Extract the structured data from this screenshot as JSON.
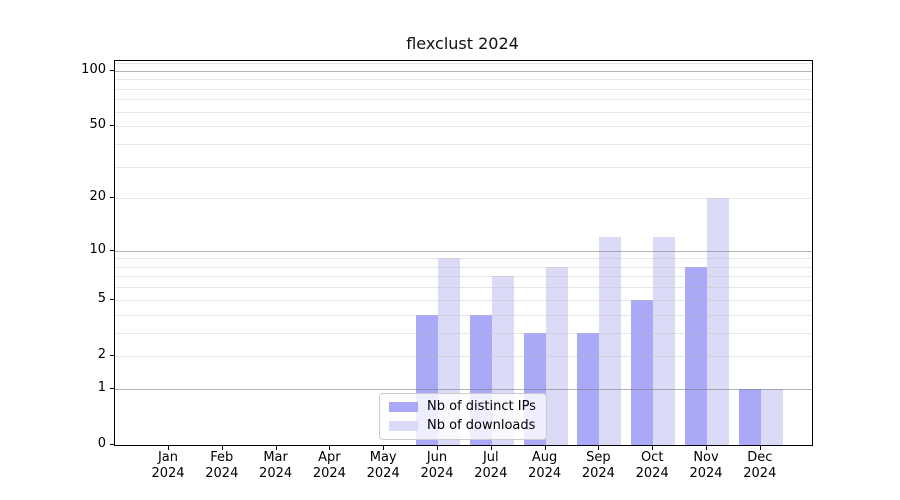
{
  "title": "flexclust 2024",
  "chart_data": {
    "type": "bar",
    "title": "flexclust 2024",
    "categories": [
      "Jan 2024",
      "Feb 2024",
      "Mar 2024",
      "Apr 2024",
      "May 2024",
      "Jun 2024",
      "Jul 2024",
      "Aug 2024",
      "Sep 2024",
      "Oct 2024",
      "Nov 2024",
      "Dec 2024"
    ],
    "months": [
      "Jan",
      "Feb",
      "Mar",
      "Apr",
      "May",
      "Jun",
      "Jul",
      "Aug",
      "Sep",
      "Oct",
      "Nov",
      "Dec"
    ],
    "year_label": "2024",
    "series": [
      {
        "name": "Nb of distinct IPs",
        "color": "#a9a9f7",
        "values": [
          0,
          0,
          0,
          0,
          0,
          4,
          4,
          3,
          3,
          5,
          8,
          1
        ]
      },
      {
        "name": "Nb of downloads",
        "color": "#dbdbf7",
        "values": [
          0,
          0,
          0,
          0,
          0,
          9,
          7,
          8,
          12,
          12,
          20,
          1
        ]
      }
    ],
    "xlabel": "",
    "ylabel": "",
    "yscale": "log1p",
    "ylim": [
      0,
      113
    ],
    "y_tick_labels": [
      100,
      50,
      20,
      10,
      5,
      2,
      1,
      0
    ],
    "grid": {
      "orientation": "horizontal",
      "major": [
        1,
        10,
        100
      ],
      "minor": [
        2,
        3,
        4,
        5,
        6,
        7,
        8,
        9,
        20,
        30,
        40,
        50,
        60,
        70,
        80,
        90,
        110
      ]
    },
    "legend_position": "lower center inside plot"
  },
  "legend": {
    "items": [
      {
        "label": "Nb of distinct IPs",
        "color": "#a9a9f7"
      },
      {
        "label": "Nb of downloads",
        "color": "#dbdbf7"
      }
    ]
  },
  "colors": {
    "bar_ips": "#a9a9f7",
    "bar_downloads": "#dbdbf7",
    "grid_major": "#c0c0c0",
    "grid_minor": "#e9e9e9",
    "spine": "#000000",
    "background": "#ffffff"
  }
}
